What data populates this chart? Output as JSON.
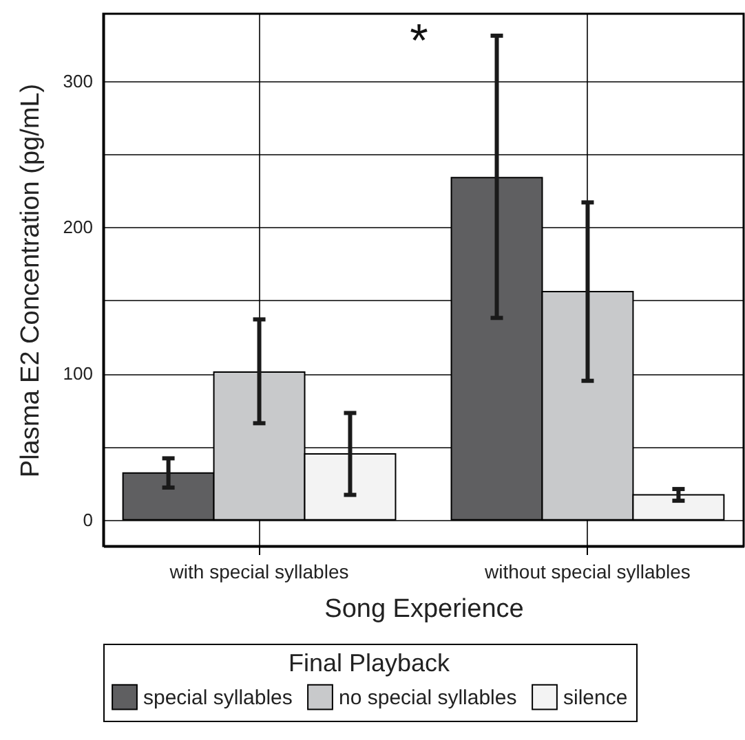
{
  "chart_data": {
    "type": "bar",
    "xlabel": "Song Experience",
    "ylabel": "Plasma E2 Concentration (pg/mL)",
    "legend_title": "Final Playback",
    "categories": [
      "with special syllables",
      "without special syllables"
    ],
    "series": [
      {
        "name": "special syllables",
        "color": "#5f5f61",
        "values": [
          32,
          234
        ],
        "errors": [
          [
            22,
            42
          ],
          [
            138,
            331
          ]
        ]
      },
      {
        "name": "no special syllables",
        "color": "#c8c9cb",
        "values": [
          101,
          156
        ],
        "errors": [
          [
            66,
            137
          ],
          [
            95,
            217
          ]
        ]
      },
      {
        "name": "silence",
        "color": "#f3f3f3",
        "values": [
          45,
          17
        ],
        "errors": [
          [
            17,
            73
          ],
          [
            13,
            21
          ]
        ]
      }
    ],
    "ylim": [
      -18,
      346
    ],
    "yticks": [
      0,
      {
        "value": 50,
        "label": null
      },
      100,
      {
        "value": 150,
        "label": null
      },
      200,
      {
        "value": 250,
        "label": null
      },
      300
    ],
    "grid": true,
    "legend": "bottom",
    "annotations": [
      "*"
    ]
  }
}
